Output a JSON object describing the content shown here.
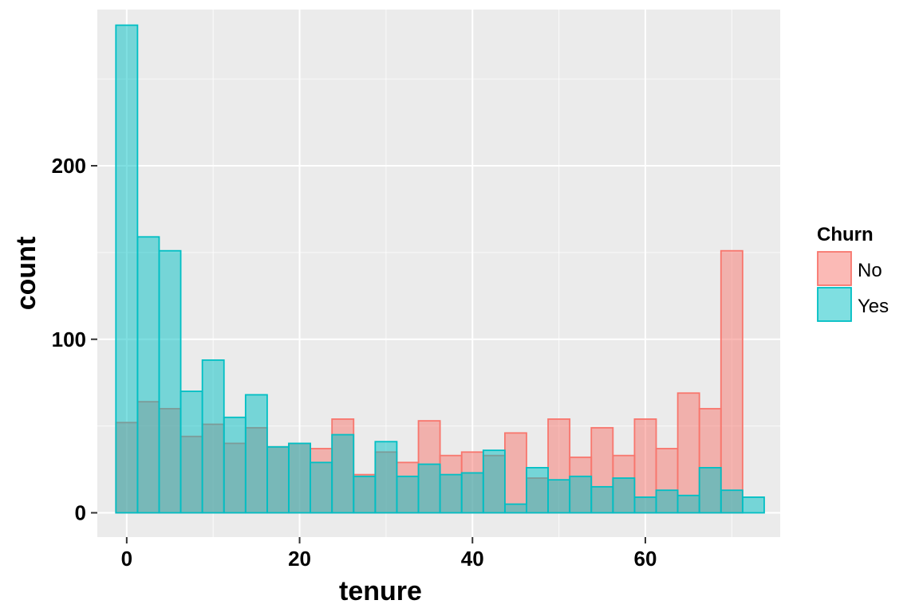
{
  "chart_data": {
    "type": "bar",
    "subtype": "overlaid-histogram",
    "title": "",
    "xlabel": "tenure",
    "ylabel": "count",
    "xlim": [
      -3.4,
      75.6
    ],
    "ylim": [
      -14,
      290
    ],
    "x_ticks": [
      0,
      20,
      40,
      60
    ],
    "y_ticks": [
      0,
      100,
      200
    ],
    "grid": true,
    "panel_background": "#EBEBEB",
    "legend": {
      "title": "Churn",
      "position": "right"
    },
    "bins": {
      "start": -1.25,
      "width": 2.5,
      "count": 30
    },
    "series": [
      {
        "name": "No",
        "fill": "#F8766D",
        "stroke": "#F8766D",
        "values": [
          52,
          64,
          60,
          44,
          51,
          40,
          49,
          38,
          40,
          37,
          54,
          22,
          35,
          29,
          53,
          33,
          35,
          33,
          46,
          20,
          54,
          32,
          49,
          33,
          54,
          37,
          69,
          60,
          151,
          0
        ]
      },
      {
        "name": "Yes",
        "fill": "#00BFC4",
        "stroke": "#00BFC4",
        "values": [
          281,
          159,
          151,
          70,
          88,
          55,
          68,
          38,
          40,
          29,
          45,
          21,
          41,
          21,
          28,
          22,
          23,
          36,
          5,
          26,
          19,
          21,
          15,
          20,
          9,
          13,
          10,
          26,
          13,
          9
        ]
      }
    ]
  }
}
